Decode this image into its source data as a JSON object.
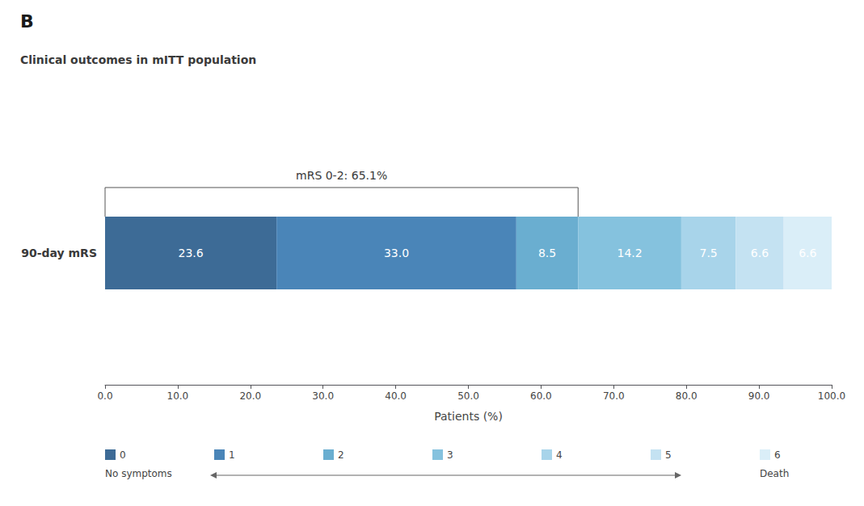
{
  "chart_data": {
    "type": "bar",
    "orientation": "horizontal",
    "stacked": true,
    "data_labels": true,
    "grid": false,
    "legend": "bottom",
    "title": "B",
    "subtitle": "Clinical outcomes in mITT population",
    "xlabel": "Patients (%)",
    "categories": [
      "90-day mRS"
    ],
    "xlim": [
      0.0,
      100.0
    ],
    "xticks": [
      {
        "value": 0,
        "label": "0.0"
      },
      {
        "value": 10,
        "label": "10.0"
      },
      {
        "value": 20,
        "label": "20.0"
      },
      {
        "value": 30,
        "label": "30.0"
      },
      {
        "value": 40,
        "label": "40.0"
      },
      {
        "value": 50,
        "label": "50.0"
      },
      {
        "value": 60,
        "label": "60.0"
      },
      {
        "value": 70,
        "label": "70.0"
      },
      {
        "value": 80,
        "label": "80.0"
      },
      {
        "value": 90,
        "label": "90.0"
      },
      {
        "value": 100,
        "label": "100.0"
      }
    ],
    "series": [
      {
        "name": "0",
        "color": "#3d6b96",
        "values": [
          23.6
        ],
        "value_labels": [
          "23.6"
        ]
      },
      {
        "name": "1",
        "color": "#4a85b8",
        "values": [
          33.0
        ],
        "value_labels": [
          "33.0"
        ]
      },
      {
        "name": "2",
        "color": "#6aaed0",
        "values": [
          8.5
        ],
        "value_labels": [
          "8.5"
        ]
      },
      {
        "name": "3",
        "color": "#85c2de",
        "values": [
          14.2
        ],
        "value_labels": [
          "14.2"
        ]
      },
      {
        "name": "4",
        "color": "#a8d4ea",
        "values": [
          7.5
        ],
        "value_labels": [
          "7.5"
        ]
      },
      {
        "name": "5",
        "color": "#c4e2f2",
        "values": [
          6.6
        ],
        "value_labels": [
          "6.6"
        ]
      },
      {
        "name": "6",
        "color": "#daeef8",
        "values": [
          6.6
        ],
        "value_labels": [
          "6.6"
        ]
      }
    ],
    "annotations": [
      {
        "text": "mRS 0-2: 65.1%",
        "x_range": [
          0,
          65.1
        ]
      },
      {
        "text": "No symptoms",
        "series": "0"
      },
      {
        "text": "Death",
        "series": "6"
      }
    ]
  }
}
